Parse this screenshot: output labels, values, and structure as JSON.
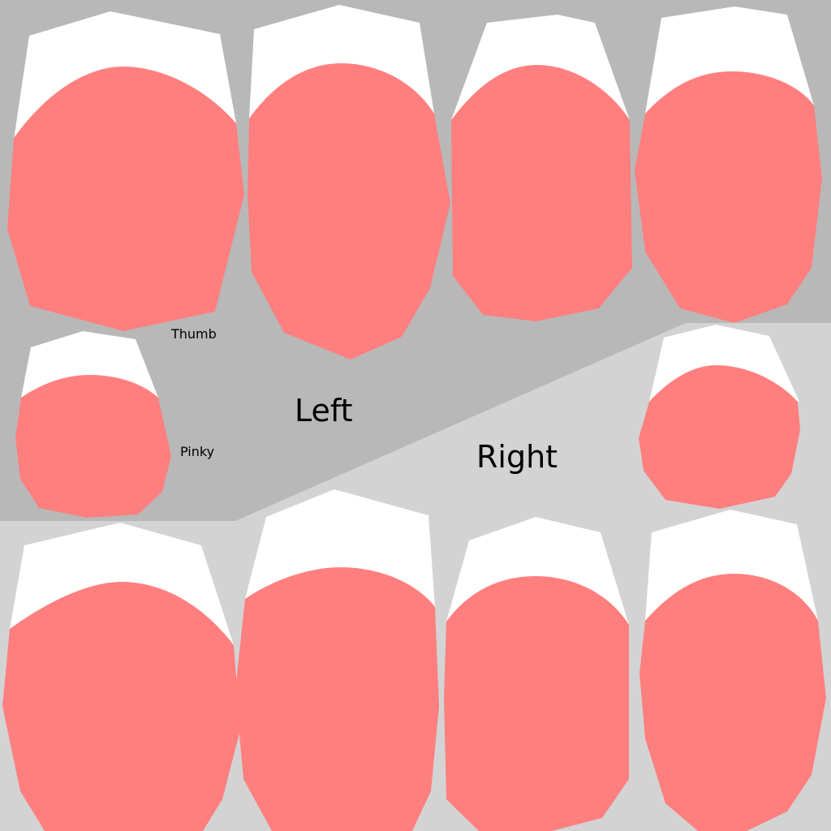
{
  "labels": {
    "thumb": "Thumb",
    "pinky": "Pinky",
    "left": "Left",
    "right": "Right"
  },
  "colors": {
    "left_region": "#b8b8b8",
    "right_region": "#d3d3d3",
    "nail_pink": "#ff7f7f",
    "nail_tip": "#ffffff"
  }
}
